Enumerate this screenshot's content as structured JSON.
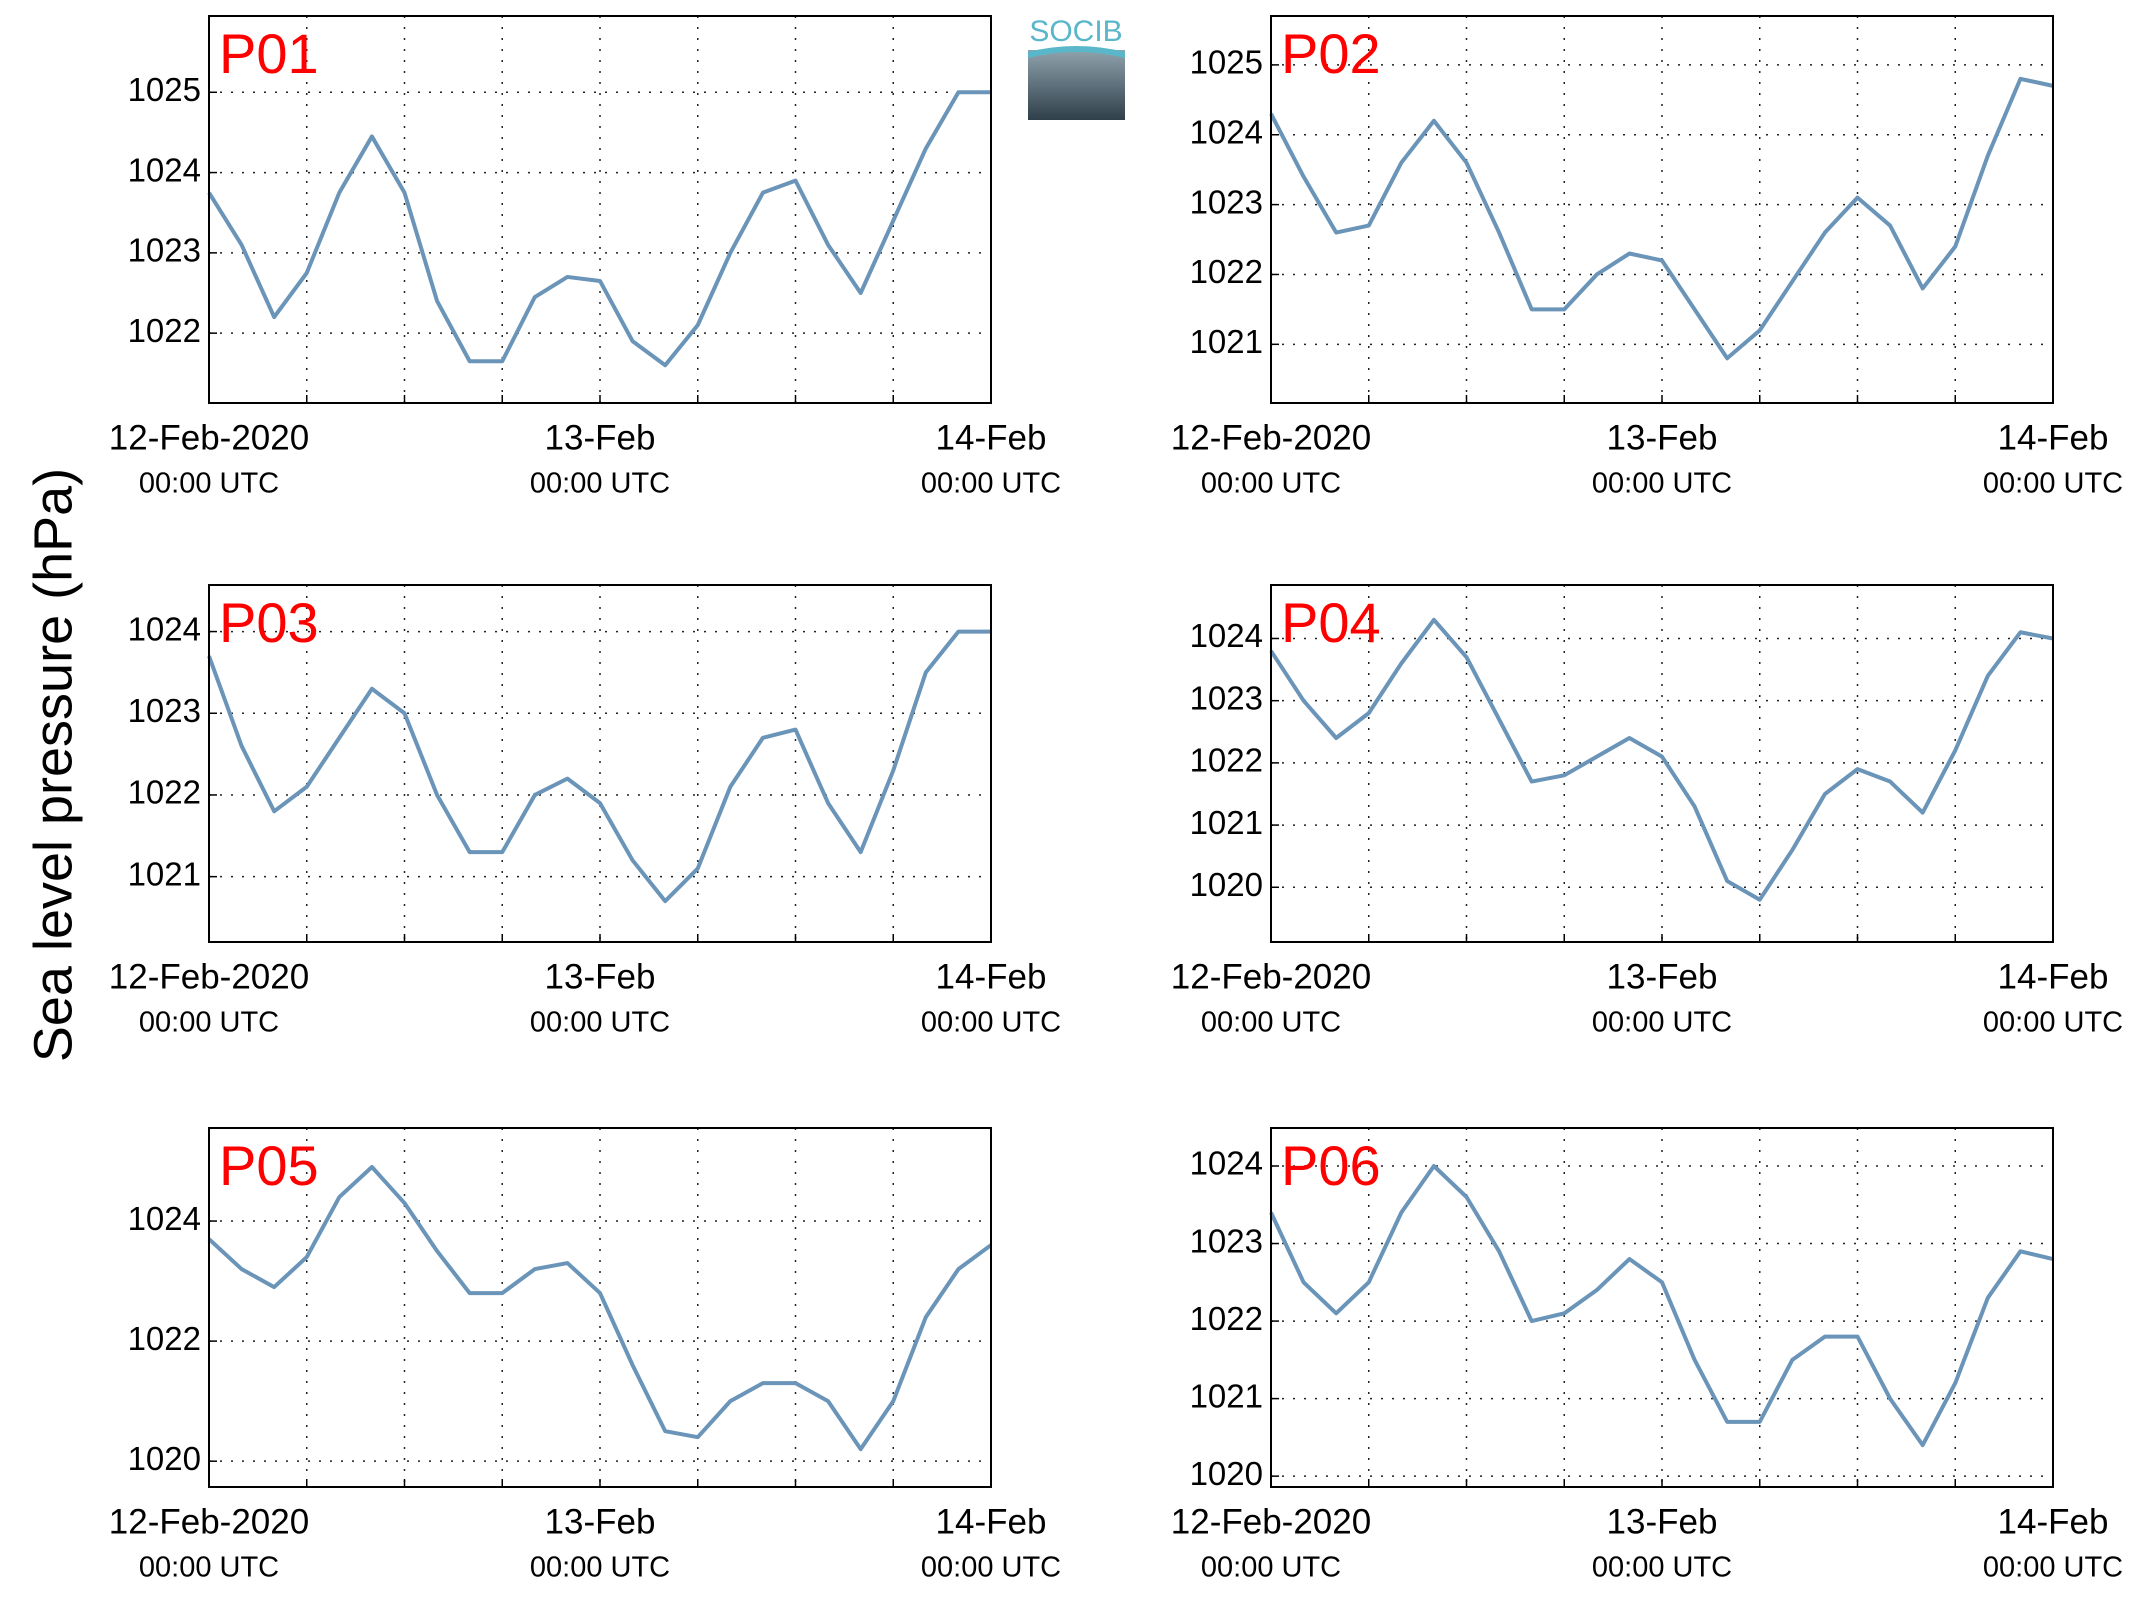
{
  "logo": {
    "text": "SOCIB"
  },
  "y_axis_label": "Sea level pressure (hPa)",
  "chart_data": [
    {
      "type": "line",
      "title": "P01",
      "color": "#6a94b8",
      "grid": true,
      "x": [
        0,
        2,
        4,
        6,
        8,
        10,
        12,
        14,
        16,
        18,
        20,
        22,
        24,
        26,
        28,
        30,
        32,
        34,
        36,
        38,
        40,
        42,
        44,
        46,
        48
      ],
      "values": [
        1023.75,
        1023.1,
        1022.2,
        1022.75,
        1023.75,
        1024.45,
        1023.75,
        1022.4,
        1021.65,
        1021.65,
        1022.45,
        1022.7,
        1022.65,
        1021.9,
        1021.6,
        1022.1,
        1023.0,
        1023.75,
        1023.9,
        1023.1,
        1022.5,
        1023.4,
        1024.3,
        1025.0,
        1025.0
      ],
      "xlim": [
        0,
        48
      ],
      "xticks": [
        {
          "value": 0,
          "label": [
            "12-Feb-2020",
            "00:00 UTC"
          ]
        },
        {
          "value": 6,
          "label": null
        },
        {
          "value": 12,
          "label": null
        },
        {
          "value": 18,
          "label": null
        },
        {
          "value": 24,
          "label": [
            "13-Feb",
            "00:00 UTC"
          ]
        },
        {
          "value": 30,
          "label": null
        },
        {
          "value": 36,
          "label": null
        },
        {
          "value": 42,
          "label": null
        },
        {
          "value": 48,
          "label": [
            "14-Feb",
            "00:00 UTC"
          ]
        }
      ],
      "ylim": [
        1021.13,
        1025.95
      ],
      "yticks": [
        1022,
        1023,
        1024,
        1025
      ]
    },
    {
      "type": "line",
      "title": "P02",
      "color": "#6a94b8",
      "grid": true,
      "x": [
        0,
        2,
        4,
        6,
        8,
        10,
        12,
        14,
        16,
        18,
        20,
        22,
        24,
        26,
        28,
        30,
        32,
        34,
        36,
        38,
        40,
        42,
        44,
        46,
        48
      ],
      "values": [
        1024.3,
        1023.4,
        1022.6,
        1022.7,
        1023.6,
        1024.2,
        1023.6,
        1022.6,
        1021.5,
        1021.5,
        1022.0,
        1022.3,
        1022.2,
        1021.5,
        1020.8,
        1021.2,
        1021.9,
        1022.6,
        1023.1,
        1022.7,
        1021.8,
        1022.4,
        1023.7,
        1024.8,
        1024.7
      ],
      "xlim": [
        0,
        48
      ],
      "xticks": [
        {
          "value": 0,
          "label": [
            "12-Feb-2020",
            "00:00 UTC"
          ]
        },
        {
          "value": 6,
          "label": null
        },
        {
          "value": 12,
          "label": null
        },
        {
          "value": 18,
          "label": null
        },
        {
          "value": 24,
          "label": [
            "13-Feb",
            "00:00 UTC"
          ]
        },
        {
          "value": 30,
          "label": null
        },
        {
          "value": 36,
          "label": null
        },
        {
          "value": 42,
          "label": null
        },
        {
          "value": 48,
          "label": [
            "14-Feb",
            "00:00 UTC"
          ]
        }
      ],
      "ylim": [
        1020.16,
        1025.7
      ],
      "yticks": [
        1021,
        1022,
        1023,
        1024,
        1025
      ]
    },
    {
      "type": "line",
      "title": "P03",
      "color": "#6a94b8",
      "grid": true,
      "x": [
        0,
        2,
        4,
        6,
        8,
        10,
        12,
        14,
        16,
        18,
        20,
        22,
        24,
        26,
        28,
        30,
        32,
        34,
        36,
        38,
        40,
        42,
        44,
        46,
        48
      ],
      "values": [
        1023.7,
        1022.6,
        1021.8,
        1022.1,
        1022.7,
        1023.3,
        1023.0,
        1022.0,
        1021.3,
        1021.3,
        1022.0,
        1022.2,
        1021.9,
        1021.2,
        1020.7,
        1021.1,
        1022.1,
        1022.7,
        1022.8,
        1021.9,
        1021.3,
        1022.3,
        1023.5,
        1024.0,
        1024.0
      ],
      "xlim": [
        0,
        48
      ],
      "xticks": [
        {
          "value": 0,
          "label": [
            "12-Feb-2020",
            "00:00 UTC"
          ]
        },
        {
          "value": 6,
          "label": null
        },
        {
          "value": 12,
          "label": null
        },
        {
          "value": 18,
          "label": null
        },
        {
          "value": 24,
          "label": [
            "13-Feb",
            "00:00 UTC"
          ]
        },
        {
          "value": 30,
          "label": null
        },
        {
          "value": 36,
          "label": null
        },
        {
          "value": 42,
          "label": null
        },
        {
          "value": 48,
          "label": [
            "14-Feb",
            "00:00 UTC"
          ]
        }
      ],
      "ylim": [
        1020.2,
        1024.57
      ],
      "yticks": [
        1021,
        1022,
        1023,
        1024
      ]
    },
    {
      "type": "line",
      "title": "P04",
      "color": "#6a94b8",
      "grid": true,
      "x": [
        0,
        2,
        4,
        6,
        8,
        10,
        12,
        14,
        16,
        18,
        20,
        22,
        24,
        26,
        28,
        30,
        32,
        34,
        36,
        38,
        40,
        42,
        44,
        46,
        48
      ],
      "values": [
        1023.8,
        1023.0,
        1022.4,
        1022.8,
        1023.6,
        1024.3,
        1023.7,
        1022.7,
        1021.7,
        1021.8,
        1022.1,
        1022.4,
        1022.1,
        1021.3,
        1020.1,
        1019.8,
        1020.6,
        1021.5,
        1021.9,
        1021.7,
        1021.2,
        1022.2,
        1023.4,
        1024.1,
        1024.0
      ],
      "xlim": [
        0,
        48
      ],
      "xticks": [
        {
          "value": 0,
          "label": [
            "12-Feb-2020",
            "00:00 UTC"
          ]
        },
        {
          "value": 6,
          "label": null
        },
        {
          "value": 12,
          "label": null
        },
        {
          "value": 18,
          "label": null
        },
        {
          "value": 24,
          "label": [
            "13-Feb",
            "00:00 UTC"
          ]
        },
        {
          "value": 30,
          "label": null
        },
        {
          "value": 36,
          "label": null
        },
        {
          "value": 42,
          "label": null
        },
        {
          "value": 48,
          "label": [
            "14-Feb",
            "00:00 UTC"
          ]
        }
      ],
      "ylim": [
        1019.12,
        1024.86
      ],
      "yticks": [
        1020,
        1021,
        1022,
        1023,
        1024
      ]
    },
    {
      "type": "line",
      "title": "P05",
      "color": "#6a94b8",
      "grid": true,
      "x": [
        0,
        2,
        4,
        6,
        8,
        10,
        12,
        14,
        16,
        18,
        20,
        22,
        24,
        26,
        28,
        30,
        32,
        34,
        36,
        38,
        40,
        42,
        44,
        46,
        48
      ],
      "values": [
        1023.7,
        1023.2,
        1022.9,
        1023.4,
        1024.4,
        1024.9,
        1024.3,
        1023.5,
        1022.8,
        1022.8,
        1023.2,
        1023.3,
        1022.8,
        1021.6,
        1020.5,
        1020.4,
        1021.0,
        1021.3,
        1021.3,
        1021.0,
        1020.2,
        1021.0,
        1022.4,
        1023.2,
        1023.6
      ],
      "xlim": [
        0,
        48
      ],
      "xticks": [
        {
          "value": 0,
          "label": [
            "12-Feb-2020",
            "00:00 UTC"
          ]
        },
        {
          "value": 6,
          "label": null
        },
        {
          "value": 12,
          "label": null
        },
        {
          "value": 18,
          "label": null
        },
        {
          "value": 24,
          "label": [
            "13-Feb",
            "00:00 UTC"
          ]
        },
        {
          "value": 30,
          "label": null
        },
        {
          "value": 36,
          "label": null
        },
        {
          "value": 42,
          "label": null
        },
        {
          "value": 48,
          "label": [
            "14-Feb",
            "00:00 UTC"
          ]
        }
      ],
      "ylim": [
        1019.57,
        1025.55
      ],
      "yticks": [
        1020,
        1022,
        1024
      ]
    },
    {
      "type": "line",
      "title": "P06",
      "color": "#6a94b8",
      "grid": true,
      "x": [
        0,
        2,
        4,
        6,
        8,
        10,
        12,
        14,
        16,
        18,
        20,
        22,
        24,
        26,
        28,
        30,
        32,
        34,
        36,
        38,
        40,
        42,
        44,
        46,
        48
      ],
      "values": [
        1023.4,
        1022.5,
        1022.1,
        1022.5,
        1023.4,
        1024.0,
        1023.6,
        1022.9,
        1022.0,
        1022.1,
        1022.4,
        1022.8,
        1022.5,
        1021.5,
        1020.7,
        1020.7,
        1021.5,
        1021.8,
        1021.8,
        1021.0,
        1020.4,
        1021.2,
        1022.3,
        1022.9,
        1022.8
      ],
      "xlim": [
        0,
        48
      ],
      "xticks": [
        {
          "value": 0,
          "label": [
            "12-Feb-2020",
            "00:00 UTC"
          ]
        },
        {
          "value": 6,
          "label": null
        },
        {
          "value": 12,
          "label": null
        },
        {
          "value": 18,
          "label": null
        },
        {
          "value": 24,
          "label": [
            "13-Feb",
            "00:00 UTC"
          ]
        },
        {
          "value": 30,
          "label": null
        },
        {
          "value": 36,
          "label": null
        },
        {
          "value": 42,
          "label": null
        },
        {
          "value": 48,
          "label": [
            "14-Feb",
            "00:00 UTC"
          ]
        }
      ],
      "ylim": [
        1019.86,
        1024.49
      ],
      "yticks": [
        1020,
        1021,
        1022,
        1023,
        1024
      ]
    }
  ]
}
